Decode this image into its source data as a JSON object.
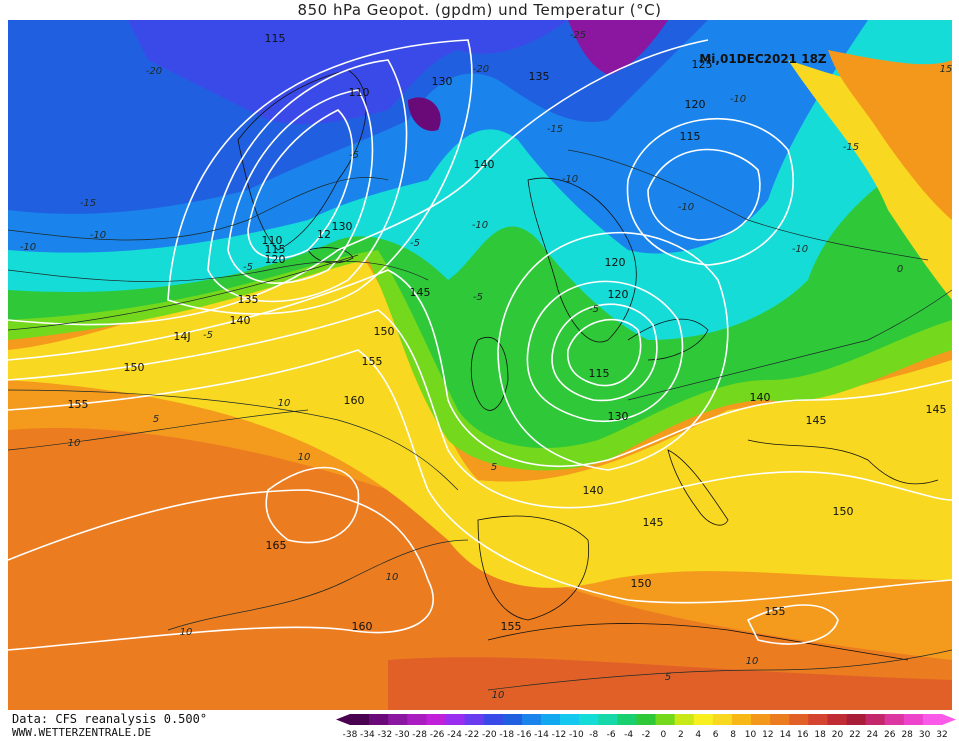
{
  "title": "850 hPa Geopot. (gpdm) und Temperatur (°C)",
  "timestamp": "Mi,01DEC2021 18Z",
  "source": "Data: CFS reanalysis 0.500°",
  "website": "WWW.WETTERZENTRALE.DE",
  "legend": {
    "colors": [
      "#4a0050",
      "#6a0a78",
      "#8b16a0",
      "#a81cc0",
      "#c020d8",
      "#9a2ef0",
      "#6a3cf0",
      "#3a4ae8",
      "#2060e0",
      "#1a84ec",
      "#12a8f0",
      "#14c8f0",
      "#16dcd8",
      "#16d8a8",
      "#18d070",
      "#2ec838",
      "#74d81c",
      "#c8e818",
      "#f8f020",
      "#f8d820",
      "#f8b818",
      "#f4981c",
      "#ec7c20",
      "#e06028",
      "#d44430",
      "#c02c34",
      "#a81e38",
      "#c4286c",
      "#dc36a0",
      "#ee44cc",
      "#fa5ae8"
    ],
    "labels": [
      "-38",
      "-34",
      "-32",
      "-30",
      "-28",
      "-26",
      "-24",
      "-22",
      "-20",
      "-18",
      "-16",
      "-14",
      "-12",
      "-10",
      "-8",
      "-6",
      "-4",
      "-2",
      "0",
      "2",
      "4",
      "6",
      "8",
      "10",
      "12",
      "14",
      "16",
      "18",
      "20",
      "22",
      "24",
      "26",
      "28",
      "30",
      "32"
    ]
  },
  "isohypse_labels": [
    "115",
    "130",
    "135",
    "110",
    "125",
    "120",
    "115",
    "140",
    "110",
    "115",
    "120",
    "130",
    "12",
    "145",
    "120",
    "120",
    "135",
    "150",
    "155",
    "14J",
    "150",
    "155",
    "160",
    "115",
    "130",
    "140",
    "145",
    "140",
    "145",
    "145",
    "150",
    "140",
    "165",
    "150",
    "160",
    "155",
    "155"
  ],
  "isotherm_labels": [
    "-20",
    "-20",
    "-25",
    "-15",
    "-15",
    "-10",
    "-5",
    "-10",
    "-5",
    "-10",
    "-10",
    "-10",
    "-15",
    "-10",
    "-5",
    "-10",
    "-5",
    "0",
    "5",
    "-5",
    "-5",
    "5",
    "10",
    "10",
    "10",
    "10",
    "10",
    "10",
    "5",
    "10",
    "15"
  ]
}
